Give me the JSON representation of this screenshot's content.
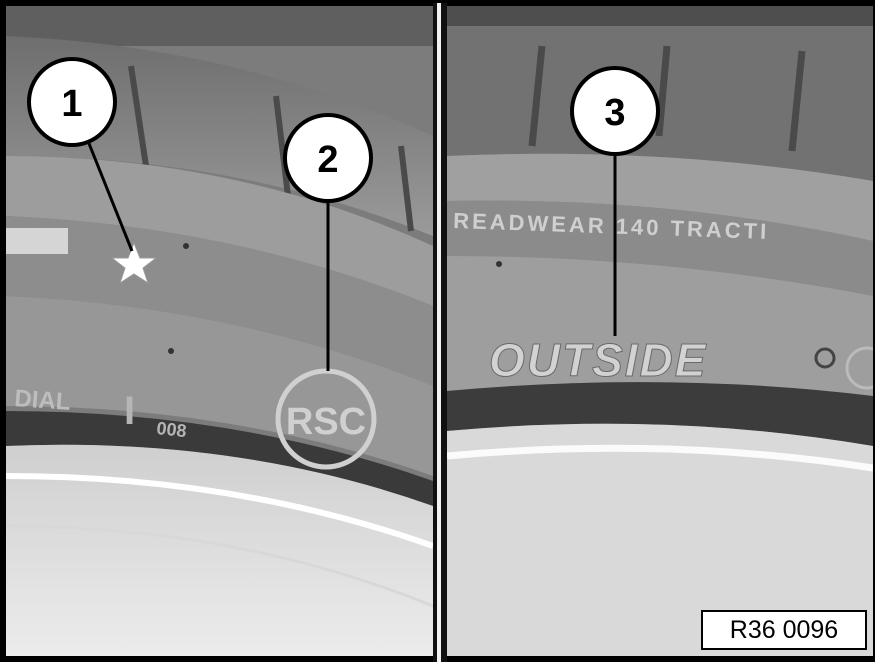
{
  "left_panel": {
    "tire_text_left": "DIAL",
    "tire_text_mark": "I",
    "tire_text_mark_sub": "008",
    "rsc_logo": "RSC",
    "star_marking": "star-icon"
  },
  "right_panel": {
    "sidewall_text": "READWEAR 140 TRACTI",
    "outside_text": "OUTSIDE"
  },
  "callouts": [
    {
      "number": "1"
    },
    {
      "number": "2"
    },
    {
      "number": "3"
    }
  ],
  "reference_label": "R36 0096"
}
